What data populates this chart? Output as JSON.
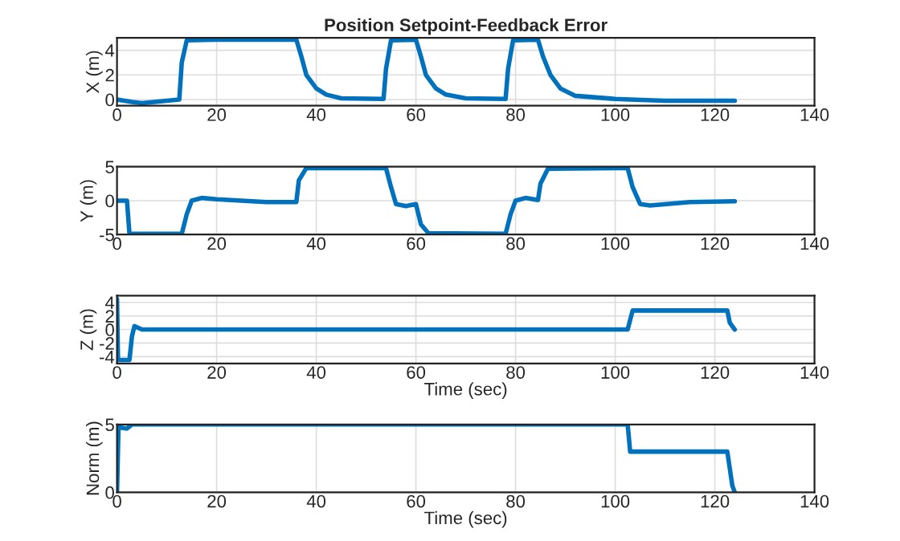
{
  "chart_data": [
    {
      "type": "line",
      "title": "Position Setpoint-Feedback Error",
      "ylabel": "X (m)",
      "xlim": [
        0,
        140
      ],
      "xticks": [
        0,
        20,
        40,
        60,
        80,
        100,
        120,
        140
      ],
      "ylim": [
        -0.5,
        5
      ],
      "yticks": [
        0,
        2,
        4
      ],
      "grid": true,
      "marker": "none",
      "line_style": "solid",
      "series": [
        {
          "color": "#0072bd",
          "x": [
            0,
            3,
            5,
            10,
            12.5,
            13,
            14,
            20,
            36,
            37,
            38,
            40,
            42,
            45,
            53.5,
            54,
            55,
            60,
            61,
            62,
            64,
            66,
            70,
            78,
            78.5,
            79.5,
            84.5,
            85.5,
            87,
            89,
            92,
            100,
            103,
            110,
            124
          ],
          "values": [
            0,
            -0.2,
            -0.3,
            -0.1,
            0,
            3,
            4.8,
            4.85,
            4.85,
            3.5,
            2,
            0.9,
            0.4,
            0.1,
            0.05,
            2.5,
            4.8,
            4.85,
            3.5,
            2,
            0.9,
            0.4,
            0.1,
            0.05,
            2.5,
            4.8,
            4.85,
            3.5,
            2,
            0.9,
            0.3,
            0.05,
            0,
            -0.1,
            -0.1
          ]
        }
      ]
    },
    {
      "type": "line",
      "ylabel": "Y (m)",
      "xlim": [
        0,
        140
      ],
      "xticks": [
        0,
        20,
        40,
        60,
        80,
        100,
        120,
        140
      ],
      "ylim": [
        -5,
        5
      ],
      "yticks": [
        -5,
        0,
        5
      ],
      "grid": true,
      "marker": "none",
      "line_style": "solid",
      "series": [
        {
          "color": "#0072bd",
          "x": [
            0,
            2,
            2.5,
            13,
            14,
            15,
            17,
            20,
            30,
            36,
            36.5,
            38,
            54,
            55,
            56,
            58,
            60,
            61,
            62.5,
            78,
            79,
            80,
            82,
            84.5,
            85,
            86.5,
            102.5,
            103.5,
            105,
            107,
            115,
            124
          ],
          "values": [
            0,
            0,
            -4.9,
            -4.9,
            -2,
            0,
            0.4,
            0.2,
            -0.2,
            -0.2,
            3,
            4.8,
            4.8,
            2,
            -0.5,
            -0.8,
            -0.5,
            -3.5,
            -4.8,
            -4.9,
            -2,
            0,
            0.4,
            0.1,
            2.5,
            4.7,
            4.8,
            2,
            -0.5,
            -0.7,
            -0.2,
            -0.1
          ]
        }
      ]
    },
    {
      "type": "line",
      "ylabel": "Z (m)",
      "xlabel": "Time (sec)",
      "xlim": [
        0,
        140
      ],
      "xticks": [
        0,
        20,
        40,
        60,
        80,
        100,
        120,
        140
      ],
      "ylim": [
        -5,
        5
      ],
      "yticks": [
        -4,
        -2,
        0,
        2,
        4
      ],
      "grid": true,
      "marker": "none",
      "line_style": "solid",
      "series": [
        {
          "color": "#0072bd",
          "x": [
            0,
            0.2,
            2.5,
            3,
            3.5,
            5,
            102.5,
            103.5,
            122.5,
            123,
            124
          ],
          "values": [
            4.5,
            -4.5,
            -4.5,
            -1,
            0.5,
            0,
            0,
            2.8,
            2.8,
            1,
            0
          ]
        }
      ]
    },
    {
      "type": "line",
      "ylabel": "Norm (m)",
      "xlabel": "Time (sec)",
      "xlim": [
        0,
        140
      ],
      "xticks": [
        0,
        20,
        40,
        60,
        80,
        100,
        120,
        140
      ],
      "ylim": [
        0,
        5
      ],
      "yticks": [
        0,
        5
      ],
      "grid": true,
      "marker": "none",
      "line_style": "solid",
      "series": [
        {
          "color": "#0072bd",
          "x": [
            0,
            0.3,
            2,
            3,
            102.5,
            103,
            122.5,
            123.5,
            124
          ],
          "values": [
            0,
            4.8,
            4.7,
            5,
            5,
            3,
            3,
            0.5,
            0
          ]
        }
      ]
    }
  ]
}
